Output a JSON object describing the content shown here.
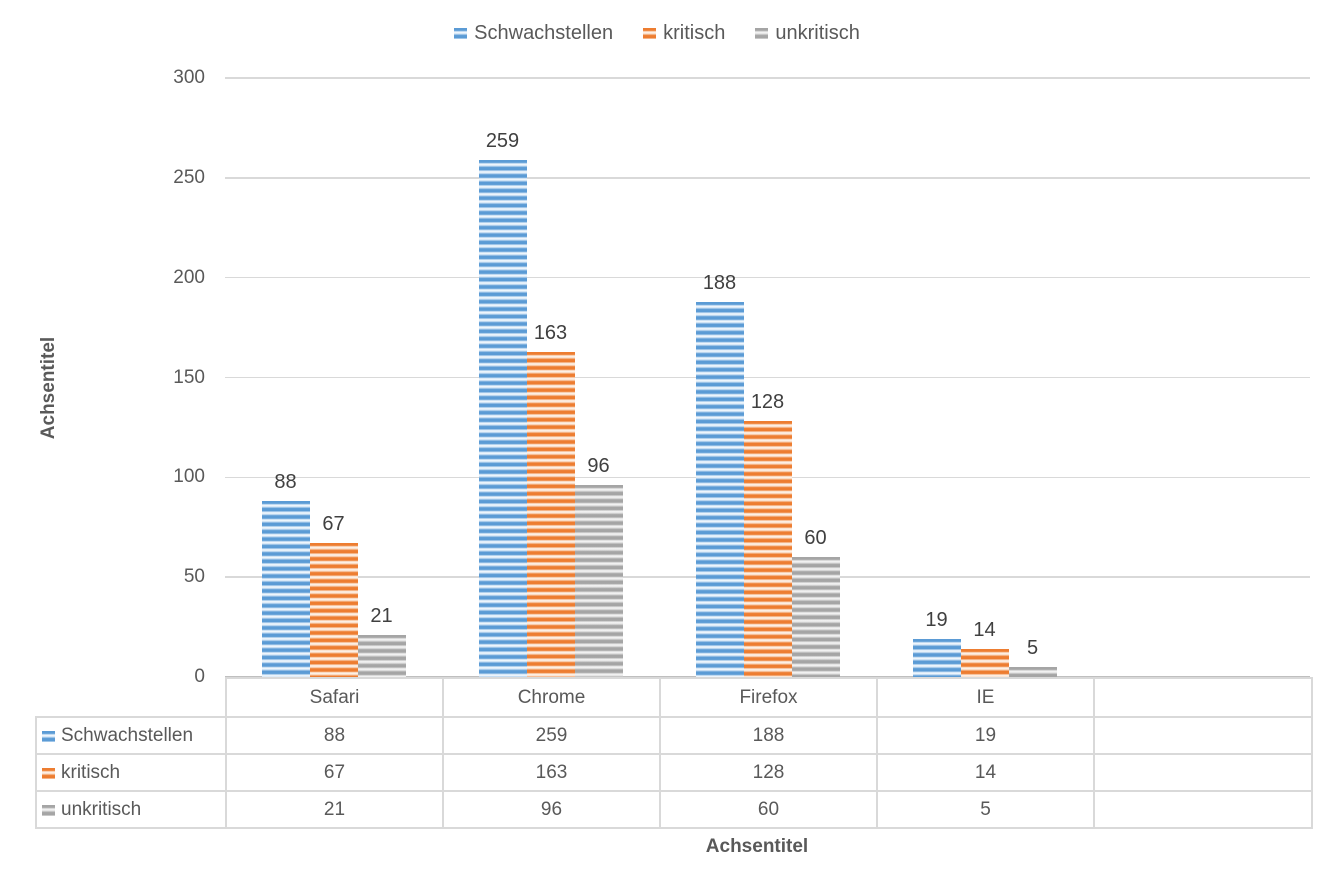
{
  "chart_data": {
    "type": "bar",
    "title": "",
    "categories": [
      "Safari",
      "Chrome",
      "Firefox",
      "IE",
      ""
    ],
    "series": [
      {
        "name": "Schwachstellen",
        "color": "#5B9BD5",
        "values": [
          88,
          259,
          188,
          19
        ]
      },
      {
        "name": "kritisch",
        "color": "#ED7D31",
        "values": [
          67,
          163,
          128,
          14
        ]
      },
      {
        "name": "unkritisch",
        "color": "#A5A5A5",
        "values": [
          21,
          96,
          60,
          5
        ]
      }
    ],
    "xlabel": "Achsentitel",
    "ylabel": "Achsentitel",
    "ylim": [
      0,
      300
    ],
    "yticks": [
      0,
      50,
      100,
      150,
      200,
      250,
      300
    ],
    "grid": true,
    "legend_position": "top",
    "data_labels_shown": true,
    "data_table_shown": true,
    "pattern_fill": "horizontal-stripes"
  },
  "colors": {
    "series_blue": "#5B9BD5",
    "series_orange": "#ED7D31",
    "series_gray": "#A5A5A5",
    "gridline": "#D9D9D9",
    "axis_line": "#BFBFBF",
    "axis_text": "#595959",
    "data_label_text": "#404040",
    "table_border": "#D9D9D9",
    "background": "#FFFFFF"
  }
}
